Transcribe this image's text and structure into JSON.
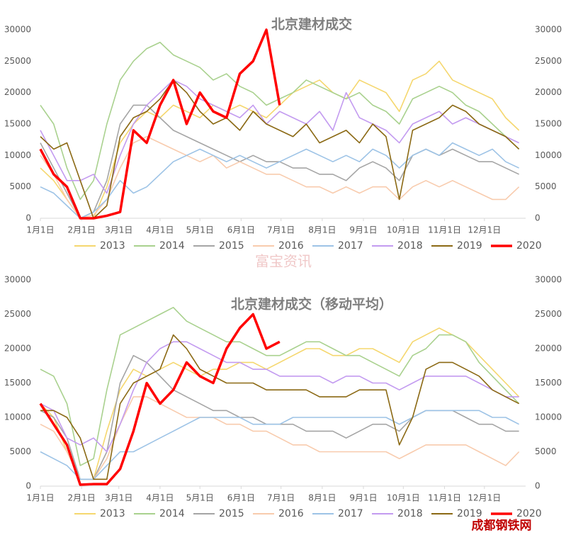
{
  "chart_data": [
    {
      "type": "line",
      "title": "北京建材成交",
      "x": [
        1,
        11,
        21,
        31,
        41,
        51,
        61,
        71,
        81,
        91,
        101,
        111,
        121,
        131,
        141,
        151,
        161,
        171,
        181,
        191,
        201,
        211,
        221,
        231,
        241,
        251,
        261,
        271,
        281,
        291,
        301,
        311,
        321,
        331,
        341,
        351,
        361
      ],
      "xlim": [
        1,
        366
      ],
      "xticks": [
        {
          "value": 1,
          "label": "1月1日"
        },
        {
          "value": 32,
          "label": "2月1日"
        },
        {
          "value": 60,
          "label": "3月1日"
        },
        {
          "value": 91,
          "label": "4月1日"
        },
        {
          "value": 121,
          "label": "5月1日"
        },
        {
          "value": 152,
          "label": "6月1日"
        },
        {
          "value": 182,
          "label": "7月1日"
        },
        {
          "value": 213,
          "label": "8月1日"
        },
        {
          "value": 244,
          "label": "9月1日"
        },
        {
          "value": 274,
          "label": "10月1日"
        },
        {
          "value": 305,
          "label": "11月1日"
        },
        {
          "value": 335,
          "label": "12月1日"
        }
      ],
      "ylim": [
        0,
        30000
      ],
      "yticks": [
        0,
        5000,
        10000,
        15000,
        20000,
        25000,
        30000
      ],
      "series": [
        {
          "name": "2013",
          "color": "#f5d76e",
          "values": [
            8000,
            6000,
            3000,
            0,
            0,
            5000,
            12000,
            15000,
            17000,
            16000,
            18000,
            17000,
            16000,
            18000,
            17000,
            18000,
            17000,
            16000,
            18000,
            20000,
            21000,
            22000,
            20000,
            19000,
            22000,
            21000,
            20000,
            17000,
            22000,
            23000,
            25000,
            22000,
            21000,
            20000,
            19000,
            16000,
            14000
          ]
        },
        {
          "name": "2014",
          "color": "#a9d18e",
          "values": [
            18000,
            15000,
            8000,
            3000,
            6000,
            15000,
            22000,
            25000,
            27000,
            28000,
            26000,
            25000,
            24000,
            22000,
            23000,
            21000,
            20000,
            18000,
            19000,
            20000,
            22000,
            21000,
            20000,
            19000,
            20000,
            18000,
            17000,
            15000,
            19000,
            20000,
            21000,
            20000,
            18000,
            17000,
            15000,
            13000,
            11000
          ]
        },
        {
          "name": "2015",
          "color": "#a5a5a5",
          "values": [
            12000,
            8000,
            4000,
            0,
            1000,
            6000,
            15000,
            18000,
            18000,
            16000,
            14000,
            13000,
            12000,
            11000,
            10000,
            9000,
            10000,
            9000,
            9000,
            8000,
            8000,
            7000,
            7000,
            6000,
            8000,
            9000,
            8000,
            6000,
            10000,
            11000,
            10000,
            11000,
            10000,
            9000,
            9000,
            8000,
            7000
          ]
        },
        {
          "name": "2016",
          "color": "#f8cbad",
          "values": [
            10000,
            7000,
            3000,
            0,
            500,
            3000,
            8000,
            12000,
            13000,
            12000,
            11000,
            10000,
            9000,
            10000,
            8000,
            9000,
            8000,
            7000,
            7000,
            6000,
            5000,
            5000,
            4000,
            5000,
            4000,
            5000,
            5000,
            3000,
            5000,
            6000,
            5000,
            6000,
            5000,
            4000,
            3000,
            3000,
            5000
          ]
        },
        {
          "name": "2017",
          "color": "#9dc3e6",
          "values": [
            5000,
            4000,
            2000,
            0,
            1000,
            3000,
            6000,
            4000,
            5000,
            7000,
            9000,
            10000,
            11000,
            10000,
            9000,
            10000,
            9000,
            8000,
            9000,
            10000,
            11000,
            10000,
            9000,
            10000,
            9000,
            11000,
            10000,
            8000,
            10000,
            11000,
            10000,
            12000,
            11000,
            10000,
            11000,
            9000,
            8000
          ]
        },
        {
          "name": "2018",
          "color": "#c39bf0",
          "values": [
            14000,
            10000,
            6000,
            6000,
            7000,
            4000,
            10000,
            15000,
            18000,
            20000,
            22000,
            21000,
            19000,
            18000,
            17000,
            16000,
            18000,
            15000,
            17000,
            16000,
            15000,
            17000,
            14000,
            20000,
            16000,
            15000,
            14000,
            12000,
            15000,
            16000,
            17000,
            15000,
            16000,
            15000,
            14000,
            13000,
            12000
          ]
        },
        {
          "name": "2019",
          "color": "#8b6914",
          "values": [
            13000,
            11000,
            12000,
            6000,
            0,
            2000,
            13000,
            16000,
            17000,
            19000,
            22000,
            20000,
            17000,
            15000,
            16000,
            14000,
            17000,
            15000,
            14000,
            13000,
            15000,
            12000,
            13000,
            14000,
            12000,
            15000,
            13000,
            3000,
            14000,
            15000,
            16000,
            18000,
            17000,
            15000,
            14000,
            13000,
            11000
          ]
        },
        {
          "name": "2020",
          "color": "#ff0000",
          "values": [
            11000,
            7000,
            5000,
            0,
            0,
            400,
            1000,
            14000,
            12000,
            18000,
            22000,
            15000,
            20000,
            17000,
            16000,
            23000,
            25000,
            30000,
            18000,
            null,
            null,
            null,
            null,
            null,
            null,
            null,
            null,
            null,
            null,
            null,
            null,
            null,
            null,
            null,
            null,
            null,
            null
          ]
        }
      ]
    },
    {
      "type": "line",
      "title": "北京建材成交（移动平均）",
      "x": [
        1,
        11,
        21,
        31,
        41,
        51,
        61,
        71,
        81,
        91,
        101,
        111,
        121,
        131,
        141,
        151,
        161,
        171,
        181,
        191,
        201,
        211,
        221,
        231,
        241,
        251,
        261,
        271,
        281,
        291,
        301,
        311,
        321,
        331,
        341,
        351,
        361
      ],
      "xlim": [
        1,
        366
      ],
      "xticks": [
        {
          "value": 1,
          "label": "1月1日"
        },
        {
          "value": 32,
          "label": "2月1日"
        },
        {
          "value": 60,
          "label": "3月1日"
        },
        {
          "value": 91,
          "label": "4月1日"
        },
        {
          "value": 121,
          "label": "5月1日"
        },
        {
          "value": 152,
          "label": "6月1日"
        },
        {
          "value": 182,
          "label": "7月1日"
        },
        {
          "value": 213,
          "label": "8月1日"
        },
        {
          "value": 244,
          "label": "9月1日"
        },
        {
          "value": 274,
          "label": "10月1日"
        },
        {
          "value": 305,
          "label": "11月1日"
        },
        {
          "value": 335,
          "label": "12月1日"
        }
      ],
      "ylim": [
        0,
        30000
      ],
      "yticks": [
        0,
        5000,
        10000,
        15000,
        20000,
        25000,
        30000
      ],
      "series": [
        {
          "name": "2013",
          "color": "#f5d76e",
          "values": [
            12000,
            10000,
            5000,
            1000,
            1000,
            8000,
            14000,
            17000,
            16000,
            17000,
            18000,
            17000,
            16000,
            17000,
            17000,
            18000,
            18000,
            17000,
            18000,
            19000,
            20000,
            20000,
            19000,
            19000,
            20000,
            20000,
            19000,
            18000,
            21000,
            22000,
            23000,
            22000,
            21000,
            19000,
            17000,
            15000,
            13000
          ]
        },
        {
          "name": "2014",
          "color": "#a9d18e",
          "values": [
            17000,
            16000,
            12000,
            3000,
            4000,
            14000,
            22000,
            23000,
            24000,
            25000,
            26000,
            24000,
            23000,
            22000,
            21000,
            21000,
            20000,
            19000,
            19000,
            20000,
            21000,
            21000,
            20000,
            19000,
            19000,
            18000,
            17000,
            16000,
            19000,
            20000,
            22000,
            22000,
            21000,
            18000,
            16000,
            14000,
            12000
          ]
        },
        {
          "name": "2015",
          "color": "#a5a5a5",
          "values": [
            11000,
            10000,
            7000,
            1000,
            1000,
            5000,
            15000,
            19000,
            18000,
            16000,
            14000,
            13000,
            12000,
            11000,
            11000,
            10000,
            10000,
            9000,
            9000,
            9000,
            8000,
            8000,
            8000,
            7000,
            8000,
            9000,
            9000,
            8000,
            10000,
            11000,
            11000,
            11000,
            10000,
            9000,
            9000,
            8000,
            8000
          ]
        },
        {
          "name": "2016",
          "color": "#f8cbad",
          "values": [
            9000,
            8000,
            5000,
            1000,
            1000,
            4000,
            9000,
            13000,
            13000,
            12000,
            11000,
            10000,
            10000,
            10000,
            9000,
            9000,
            8000,
            8000,
            7000,
            6000,
            6000,
            5000,
            5000,
            5000,
            5000,
            5000,
            5000,
            4000,
            5000,
            6000,
            6000,
            6000,
            6000,
            5000,
            4000,
            3000,
            5000
          ]
        },
        {
          "name": "2017",
          "color": "#9dc3e6",
          "values": [
            5000,
            4000,
            3000,
            1000,
            1000,
            3000,
            5000,
            5000,
            6000,
            7000,
            8000,
            9000,
            10000,
            10000,
            10000,
            10000,
            9000,
            9000,
            9000,
            10000,
            10000,
            10000,
            10000,
            10000,
            10000,
            10000,
            10000,
            9000,
            10000,
            11000,
            11000,
            11000,
            11000,
            11000,
            10000,
            10000,
            9000
          ]
        },
        {
          "name": "2018",
          "color": "#c39bf0",
          "values": [
            12000,
            11000,
            7000,
            6000,
            7000,
            5000,
            9000,
            14000,
            18000,
            20000,
            21000,
            21000,
            20000,
            19000,
            18000,
            18000,
            17000,
            17000,
            16000,
            16000,
            16000,
            16000,
            15000,
            16000,
            16000,
            15000,
            15000,
            14000,
            15000,
            16000,
            16000,
            16000,
            16000,
            15000,
            14000,
            13000,
            13000
          ]
        },
        {
          "name": "2019",
          "color": "#8b6914",
          "values": [
            11000,
            11000,
            10000,
            7000,
            1000,
            1000,
            12000,
            15000,
            16000,
            17000,
            22000,
            20000,
            17000,
            16000,
            15000,
            15000,
            15000,
            14000,
            14000,
            14000,
            14000,
            13000,
            13000,
            13000,
            14000,
            14000,
            14000,
            6000,
            10000,
            17000,
            18000,
            18000,
            17000,
            16000,
            14000,
            13000,
            12000
          ]
        },
        {
          "name": "2020",
          "color": "#ff0000",
          "values": [
            12000,
            9000,
            6000,
            200,
            300,
            300,
            2500,
            8000,
            15000,
            12000,
            14000,
            18000,
            16000,
            15000,
            20000,
            23000,
            25000,
            20000,
            21000,
            null,
            null,
            null,
            null,
            null,
            null,
            null,
            null,
            null,
            null,
            null,
            null,
            null,
            null,
            null,
            null,
            null,
            null
          ]
        }
      ]
    }
  ],
  "watermark": "富宝资讯",
  "logo": "成都钢铁网"
}
